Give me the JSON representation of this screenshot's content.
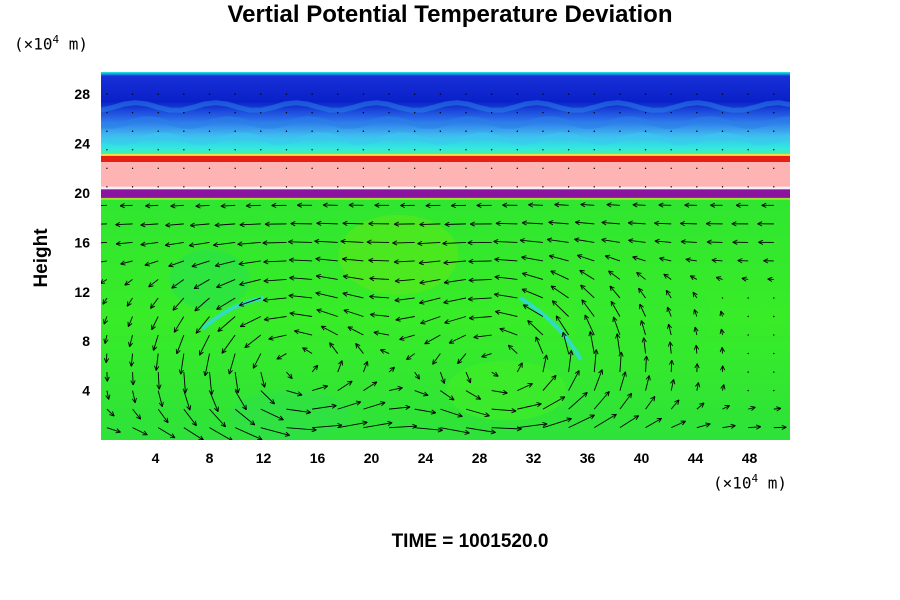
{
  "chart_data": {
    "type": "heatmap",
    "title": "Vertial Potential Temperature Deviation",
    "ylabel": "Height",
    "y_unit": {
      "prefix": "(×10",
      "exp": "4",
      "suffix": " m)"
    },
    "x_unit": {
      "prefix": "(×10",
      "exp": "4",
      "suffix": " m)"
    },
    "xlim": [
      0,
      51
    ],
    "ylim": [
      0,
      29.8
    ],
    "x_ticks": [
      "4",
      "8",
      "12",
      "16",
      "20",
      "24",
      "28",
      "32",
      "36",
      "40",
      "44",
      "48"
    ],
    "x_tick_values": [
      4,
      8,
      12,
      16,
      20,
      24,
      28,
      32,
      36,
      40,
      44,
      48
    ],
    "y_ticks": [
      "4",
      "8",
      "12",
      "16",
      "20",
      "24",
      "28"
    ],
    "y_tick_values": [
      4,
      8,
      12,
      16,
      20,
      24,
      28
    ],
    "overlay": "wind vectors",
    "colors": {
      "lower_field": "#3cf01e",
      "purple_band": "#8a14a0",
      "pink_band": "#ffb4b4",
      "red_edge": "#e61e14",
      "upper_blue": "#0a28d2",
      "cyan": "#20dcf0",
      "arrows": "#000000"
    },
    "layers": [
      {
        "name": "purple",
        "y0": 19.6,
        "y1": 20.3
      },
      {
        "name": "pink",
        "y0": 20.5,
        "y1": 22.5
      },
      {
        "name": "red-edge",
        "y0": 22.5,
        "y1": 23.0
      },
      {
        "name": "upper-blue",
        "y0": 23.0,
        "y1": 29.8
      }
    ],
    "circulation_cells": [
      {
        "center_x": 14,
        "center_y": 6,
        "rotation": "ccw"
      },
      {
        "center_x": 30,
        "center_y": 6,
        "rotation": "ccw"
      }
    ]
  },
  "time": {
    "label": "TIME = 1001520.0"
  }
}
